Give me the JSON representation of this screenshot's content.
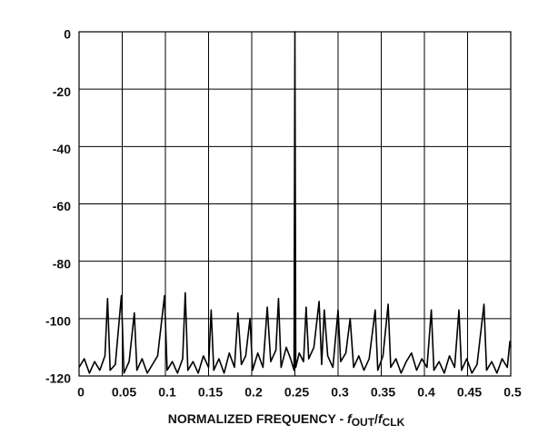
{
  "chart_data": {
    "type": "line",
    "xlabel_parts": [
      "NORMALIZED FREQUENCY - ",
      "f",
      "OUT",
      "/",
      "f",
      "CLK"
    ],
    "x": [
      0,
      0.006,
      0.012,
      0.018,
      0.024,
      0.03,
      0.033,
      0.036,
      0.042,
      0.049,
      0.052,
      0.058,
      0.064,
      0.067,
      0.073,
      0.079,
      0.085,
      0.091,
      0.099,
      0.102,
      0.108,
      0.114,
      0.12,
      0.123,
      0.126,
      0.132,
      0.138,
      0.144,
      0.15,
      0.153,
      0.156,
      0.162,
      0.168,
      0.174,
      0.18,
      0.184,
      0.188,
      0.193,
      0.198,
      0.201,
      0.207,
      0.213,
      0.218,
      0.222,
      0.228,
      0.231,
      0.234,
      0.24,
      0.245,
      0.249,
      0.25,
      0.251,
      0.255,
      0.26,
      0.263,
      0.266,
      0.272,
      0.278,
      0.281,
      0.284,
      0.288,
      0.294,
      0.3,
      0.303,
      0.309,
      0.314,
      0.318,
      0.324,
      0.33,
      0.336,
      0.343,
      0.346,
      0.352,
      0.358,
      0.361,
      0.367,
      0.373,
      0.379,
      0.385,
      0.391,
      0.397,
      0.403,
      0.408,
      0.411,
      0.417,
      0.423,
      0.429,
      0.435,
      0.44,
      0.443,
      0.449,
      0.455,
      0.461,
      0.469,
      0.472,
      0.478,
      0.484,
      0.49,
      0.496,
      0.499,
      0.5
    ],
    "series": [
      {
        "color": "#000000",
        "values": [
          -117,
          -114,
          -119,
          -115,
          -118,
          -113,
          -93,
          -118,
          -116,
          -92,
          -119,
          -115,
          -98,
          -118,
          -114,
          -119,
          -116,
          -113,
          -92,
          -118,
          -115,
          -119,
          -114,
          -91,
          -118,
          -115,
          -119,
          -113,
          -117,
          -97,
          -118,
          -114,
          -119,
          -112,
          -117,
          -98,
          -116,
          -113,
          -100,
          -118,
          -112,
          -117,
          -96,
          -115,
          -111,
          -93,
          -117,
          -110,
          -114,
          -118,
          0,
          -117,
          -112,
          -115,
          -96,
          -114,
          -110,
          -94,
          -116,
          -97,
          -113,
          -117,
          -97,
          -115,
          -112,
          -100,
          -117,
          -113,
          -118,
          -114,
          -97,
          -118,
          -113,
          -95,
          -117,
          -114,
          -119,
          -115,
          -112,
          -118,
          -114,
          -117,
          -97,
          -118,
          -115,
          -119,
          -113,
          -117,
          -97,
          -118,
          -114,
          -119,
          -116,
          -95,
          -118,
          -115,
          -119,
          -114,
          -117,
          -108,
          -110
        ]
      }
    ],
    "xlim": [
      0,
      0.5
    ],
    "xticks": [
      0,
      0.05,
      0.1,
      0.15,
      0.2,
      0.25,
      0.3,
      0.35,
      0.4,
      0.45,
      0.5
    ],
    "ylim": [
      -120,
      0
    ],
    "yticks": [
      0,
      -20,
      -40,
      -60,
      -80,
      -100,
      -120
    ],
    "grid": true
  }
}
